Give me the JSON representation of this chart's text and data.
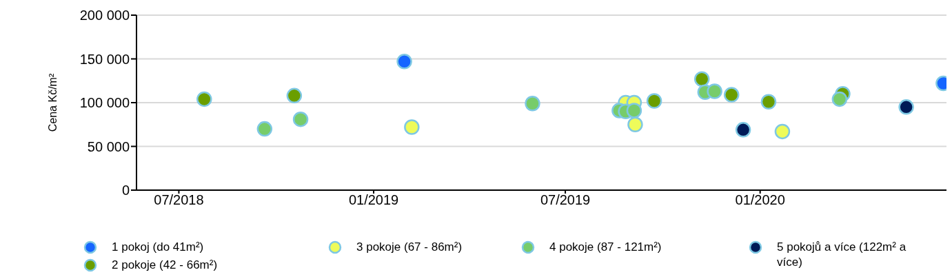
{
  "chart_data": {
    "type": "scatter",
    "ylabel": "Cena Kč/m²",
    "xlim": [
      "2018-05-22",
      "2020-06-25"
    ],
    "xticks": [
      {
        "value": "2018-07-01",
        "label": "07/2018"
      },
      {
        "value": "2019-01-01",
        "label": "01/2019"
      },
      {
        "value": "2019-07-01",
        "label": "07/2019"
      },
      {
        "value": "2020-01-01",
        "label": "01/2020"
      }
    ],
    "ylim": [
      0,
      200000
    ],
    "yticks": [
      {
        "value": 0,
        "label": "0"
      },
      {
        "value": 50000,
        "label": "50 000"
      },
      {
        "value": 100000,
        "label": "100 000"
      },
      {
        "value": 150000,
        "label": "150 000"
      },
      {
        "value": 200000,
        "label": "200 000"
      }
    ],
    "grid": "y",
    "legend": "bottom",
    "marker": "circle",
    "series": [
      {
        "name": "1 pokoj (do 41m²)",
        "color": "#1565ff",
        "x": [
          "2019-01-30",
          "2020-06-22"
        ],
        "values": [
          147000,
          122000
        ]
      },
      {
        "name": "2 pokoje (42 - 66m²)",
        "color": "#6a9e00",
        "x": [
          "2018-07-25",
          "2018-10-18",
          "2019-09-23",
          "2019-11-07",
          "2019-12-05",
          "2020-01-09",
          "2020-03-19"
        ],
        "values": [
          104000,
          108000,
          102000,
          127000,
          109000,
          101000,
          110000
        ]
      },
      {
        "name": "3 pokoje (67 - 86m²)",
        "color": "#eefb5a",
        "x": [
          "2019-02-06",
          "2019-08-27",
          "2019-09-04",
          "2019-09-05",
          "2020-01-22"
        ],
        "values": [
          72000,
          100000,
          100000,
          75000,
          67000
        ]
      },
      {
        "name": "4 pokoje (87 - 121m²)",
        "color": "#77cc6a",
        "x": [
          "2018-09-20",
          "2018-10-24",
          "2019-05-31",
          "2019-08-21",
          "2019-08-27",
          "2019-09-04",
          "2019-11-10",
          "2019-11-19",
          "2020-03-16"
        ],
        "values": [
          70000,
          81000,
          99000,
          91000,
          90000,
          91000,
          112000,
          113000,
          104000
        ]
      },
      {
        "name": "5 pokojů a více (122m² a více)",
        "color": "#001a57",
        "x": [
          "2019-12-16",
          "2020-05-18"
        ],
        "values": [
          69000,
          95000
        ]
      }
    ]
  }
}
